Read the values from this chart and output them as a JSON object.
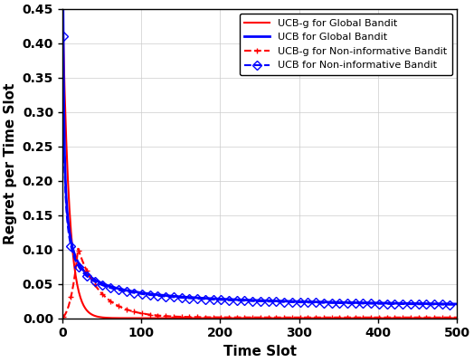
{
  "title": "",
  "xlabel": "Time Slot",
  "ylabel": "Regret per Time Slot",
  "xlim": [
    0,
    500
  ],
  "ylim": [
    0,
    0.45
  ],
  "xticks": [
    0,
    100,
    200,
    300,
    400,
    500
  ],
  "yticks": [
    0,
    0.05,
    0.1,
    0.15,
    0.2,
    0.25,
    0.3,
    0.35,
    0.4,
    0.45
  ],
  "legend": [
    "UCB-g for Global Bandit",
    "UCB for Global Bandit",
    "UCB-g for Non-informative Bandit",
    "UCB for Non-informative Bandit"
  ],
  "line_colors": [
    "#ff0000",
    "#0000ff",
    "#ff0000",
    "#0000ff"
  ],
  "line_styles": [
    "-",
    "-",
    "--",
    "--"
  ],
  "markers": [
    "None",
    "None",
    "+",
    "D"
  ],
  "linewidths": [
    1.5,
    2.0,
    1.5,
    1.5
  ],
  "marker_sizes": [
    0,
    0,
    5,
    5
  ],
  "marker_every_ucbg": 10,
  "marker_every_ucb": 10,
  "grid": true,
  "grid_color": "#cccccc",
  "background_color": "#ffffff",
  "fig_width": 5.24,
  "fig_height": 4.0,
  "dpi": 100
}
